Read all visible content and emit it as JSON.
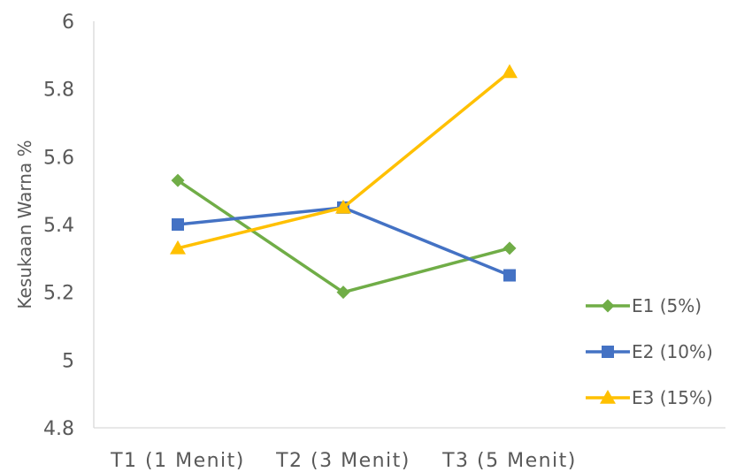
{
  "chart_data": {
    "type": "line",
    "title": "",
    "xlabel": "",
    "ylabel": "Kesukaan Warna %",
    "categories": [
      "T1 (1 Menit)",
      "T2 (3 Menit)",
      "T3 (5 Menit)"
    ],
    "ylim": [
      4.8,
      6
    ],
    "yticks": [
      4.8,
      5,
      5.2,
      5.4,
      5.6,
      5.8,
      6
    ],
    "ytick_labels": [
      "4.8",
      "5",
      "5.2",
      "5.4",
      "5.6",
      "5.8",
      "6"
    ],
    "grid": false,
    "legend_position": "right",
    "series": [
      {
        "name": "E1 (5%)",
        "values": [
          5.53,
          5.2,
          5.33
        ],
        "color": "#70AD47",
        "marker": "diamond"
      },
      {
        "name": "E2 (10%)",
        "values": [
          5.4,
          5.45,
          5.25
        ],
        "color": "#4472C4",
        "marker": "square"
      },
      {
        "name": "E3 (15%)",
        "values": [
          5.33,
          5.45,
          5.85
        ],
        "color": "#FFC000",
        "marker": "triangle"
      }
    ]
  }
}
